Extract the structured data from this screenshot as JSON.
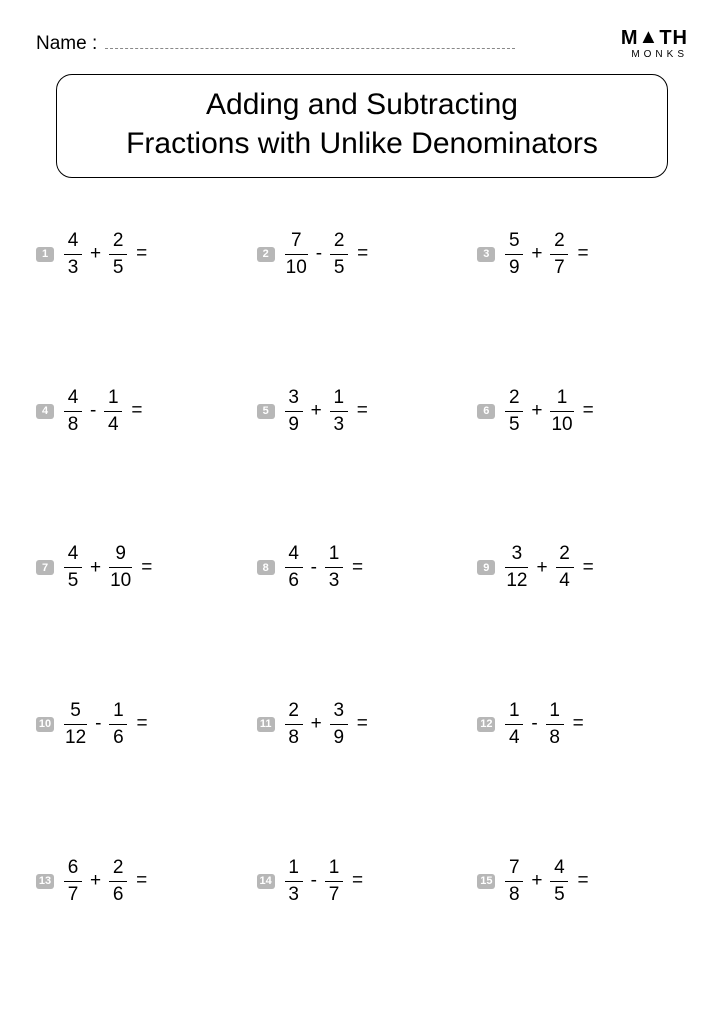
{
  "header": {
    "name_label": "Name :",
    "logo_top_left": "M",
    "logo_top_right": "TH",
    "logo_bottom": "MONKS"
  },
  "title": {
    "line1": "Adding and Subtracting",
    "line2": "Fractions with Unlike Denominators"
  },
  "style": {
    "badge_bg": "#b7b7b7",
    "badge_fg": "#ffffff",
    "text_color": "#000000",
    "page_bg": "#ffffff",
    "title_fontsize": 30,
    "problem_fontsize": 19,
    "badge_fontsize": 11,
    "columns": 3,
    "rows": 5
  },
  "problems": [
    {
      "n": "1",
      "a_num": "4",
      "a_den": "3",
      "op": "+",
      "b_num": "2",
      "b_den": "5"
    },
    {
      "n": "2",
      "a_num": "7",
      "a_den": "10",
      "op": "-",
      "b_num": "2",
      "b_den": "5"
    },
    {
      "n": "3",
      "a_num": "5",
      "a_den": "9",
      "op": "+",
      "b_num": "2",
      "b_den": "7"
    },
    {
      "n": "4",
      "a_num": "4",
      "a_den": "8",
      "op": "-",
      "b_num": "1",
      "b_den": "4"
    },
    {
      "n": "5",
      "a_num": "3",
      "a_den": "9",
      "op": "+",
      "b_num": "1",
      "b_den": "3"
    },
    {
      "n": "6",
      "a_num": "2",
      "a_den": "5",
      "op": "+",
      "b_num": "1",
      "b_den": "10"
    },
    {
      "n": "7",
      "a_num": "4",
      "a_den": "5",
      "op": "+",
      "b_num": "9",
      "b_den": "10"
    },
    {
      "n": "8",
      "a_num": "4",
      "a_den": "6",
      "op": "-",
      "b_num": "1",
      "b_den": "3"
    },
    {
      "n": "9",
      "a_num": "3",
      "a_den": "12",
      "op": "+",
      "b_num": "2",
      "b_den": "4"
    },
    {
      "n": "10",
      "a_num": "5",
      "a_den": "12",
      "op": "-",
      "b_num": "1",
      "b_den": "6"
    },
    {
      "n": "11",
      "a_num": "2",
      "a_den": "8",
      "op": "+",
      "b_num": "3",
      "b_den": "9"
    },
    {
      "n": "12",
      "a_num": "1",
      "a_den": "4",
      "op": "-",
      "b_num": "1",
      "b_den": "8"
    },
    {
      "n": "13",
      "a_num": "6",
      "a_den": "7",
      "op": "+",
      "b_num": "2",
      "b_den": "6"
    },
    {
      "n": "14",
      "a_num": "1",
      "a_den": "3",
      "op": "-",
      "b_num": "1",
      "b_den": "7"
    },
    {
      "n": "15",
      "a_num": "7",
      "a_den": "8",
      "op": "+",
      "b_num": "4",
      "b_den": "5"
    }
  ],
  "equals": "="
}
